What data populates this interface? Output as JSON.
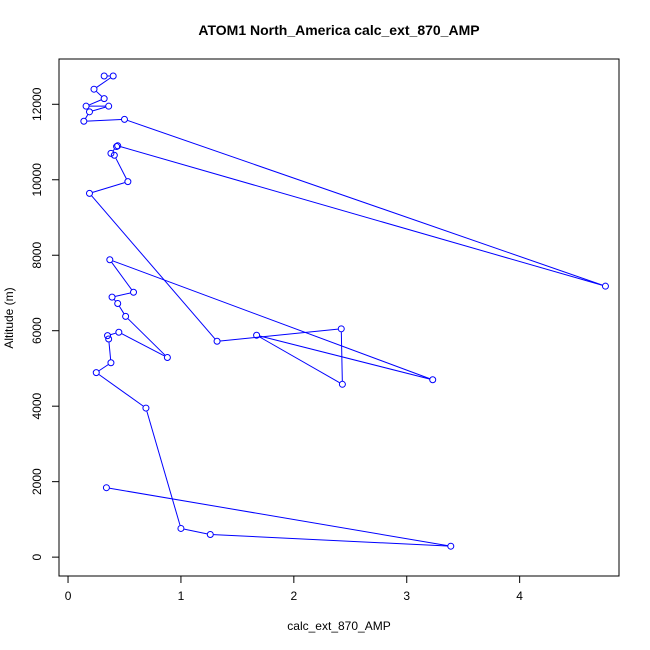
{
  "chart_data": {
    "type": "line",
    "title": "ATOM1 North_America calc_ext_870_AMP",
    "xlabel": "calc_ext_870_AMP",
    "ylabel": "Altitude (m)",
    "xlim": [
      -0.08,
      4.88
    ],
    "ylim": [
      -500,
      13200
    ],
    "xticks": [
      0,
      1,
      2,
      3,
      4
    ],
    "yticks": [
      0,
      2000,
      4000,
      6000,
      8000,
      10000,
      12000
    ],
    "grid": false,
    "legend": "none",
    "series_color": "#0000ff",
    "series": [
      {
        "values": [
          [
            0.32,
            12750
          ],
          [
            0.4,
            12750
          ],
          [
            0.23,
            12400
          ],
          [
            0.32,
            12150
          ],
          [
            0.16,
            11950
          ],
          [
            0.36,
            11950
          ],
          [
            0.19,
            11800
          ],
          [
            0.14,
            11550
          ],
          [
            0.5,
            11600
          ],
          [
            4.76,
            7180
          ],
          [
            0.44,
            10900
          ],
          [
            0.43,
            10880
          ],
          [
            0.38,
            10700
          ],
          [
            0.41,
            10650
          ],
          [
            0.53,
            9950
          ],
          [
            0.19,
            9640
          ],
          [
            1.32,
            5720
          ],
          [
            2.42,
            6050
          ],
          [
            2.43,
            4580
          ],
          [
            1.67,
            5880
          ],
          [
            3.23,
            4700
          ],
          [
            0.37,
            7880
          ],
          [
            0.58,
            7020
          ],
          [
            0.39,
            6890
          ],
          [
            0.44,
            6720
          ],
          [
            0.51,
            6380
          ],
          [
            0.88,
            5290
          ],
          [
            0.45,
            5960
          ],
          [
            0.35,
            5870
          ],
          [
            0.36,
            5780
          ],
          [
            0.38,
            5150
          ],
          [
            0.25,
            4890
          ],
          [
            0.69,
            3950
          ],
          [
            1.0,
            760
          ],
          [
            1.26,
            600
          ],
          [
            3.39,
            290
          ],
          [
            0.34,
            1840
          ]
        ]
      }
    ]
  }
}
